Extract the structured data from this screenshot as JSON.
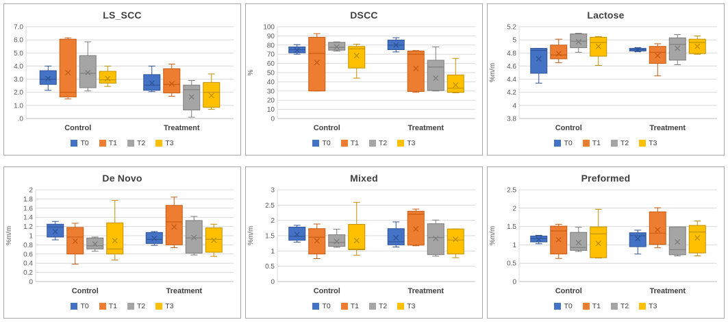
{
  "series": [
    {
      "name": "T0",
      "fill": "#4472C4",
      "border": "#2E5396"
    },
    {
      "name": "T1",
      "fill": "#ED7D31",
      "border": "#C55A11"
    },
    {
      "name": "T2",
      "fill": "#A5A5A5",
      "border": "#7B7B7B"
    },
    {
      "name": "T3",
      "fill": "#FFC000",
      "border": "#BF8F00"
    }
  ],
  "box_value_format": [
    "whisker_low",
    "q1",
    "median",
    "q3",
    "whisker_high",
    "mean"
  ],
  "colors": {
    "gridline": "#D9D9D9",
    "axis_line": "#BFBFBF",
    "panel_border": "#A6A6A6",
    "title_text": "#3F3F3F",
    "tick_text": "#595959"
  },
  "chart_data": [
    {
      "type": "boxplot",
      "title": "LS_SCC",
      "ylabel": "",
      "ylim": [
        0,
        7
      ],
      "ytick_labels": [
        "7.0",
        "6.0",
        "5.0",
        "4.0",
        "3.0",
        "2.0",
        "1.0",
        ".0"
      ],
      "grid": true,
      "legend_position": "bottom",
      "categories": [
        "Control",
        "Treatment"
      ],
      "series": [
        {
          "name": "T0",
          "values": [
            [
              2.15,
              2.6,
              3.0,
              3.65,
              4.0,
              3.05
            ],
            [
              2.05,
              2.15,
              2.55,
              3.35,
              4.0,
              2.7
            ]
          ]
        },
        {
          "name": "T1",
          "values": [
            [
              1.5,
              1.65,
              2.0,
              6.05,
              6.15,
              3.5
            ],
            [
              1.7,
              1.95,
              2.6,
              3.8,
              4.15,
              2.65
            ]
          ]
        },
        {
          "name": "T2",
          "values": [
            [
              2.1,
              2.35,
              3.45,
              4.8,
              5.85,
              3.5
            ],
            [
              0.1,
              0.65,
              2.2,
              2.55,
              2.9,
              1.65
            ]
          ]
        },
        {
          "name": "T3",
          "values": [
            [
              2.45,
              2.7,
              2.95,
              3.6,
              4.0,
              3.05
            ],
            [
              0.7,
              0.85,
              2.0,
              2.75,
              3.4,
              1.75
            ]
          ]
        }
      ]
    },
    {
      "type": "boxplot",
      "title": "DSCC",
      "ylabel": "%",
      "ylim": [
        0,
        100
      ],
      "ytick_labels": [
        "100",
        "90",
        "80",
        "70",
        "60",
        "50",
        "40",
        "30",
        "20",
        "10",
        "0"
      ],
      "grid": true,
      "legend_position": "bottom",
      "categories": [
        "Control",
        "Treatment"
      ],
      "series": [
        {
          "name": "T0",
          "values": [
            [
              70,
              71.5,
              75,
              78,
              80.5,
              74.5
            ],
            [
              72.5,
              75,
              80,
              85.5,
              88,
              80
            ]
          ]
        },
        {
          "name": "T1",
          "values": [
            [
              30,
              30,
              71,
              88.5,
              92.5,
              61
            ],
            [
              28.5,
              29.5,
              70,
              73.5,
              74,
              54.5
            ]
          ]
        },
        {
          "name": "T2",
          "values": [
            [
              73.5,
              74.5,
              77.5,
              83,
              83.5,
              78
            ],
            [
              30,
              30.5,
              56,
              63.5,
              78,
              44
            ]
          ]
        },
        {
          "name": "T3",
          "values": [
            [
              44,
              55,
              76,
              78.5,
              81,
              68.5
            ],
            [
              28,
              28.5,
              33,
              47.5,
              65.5,
              36.5
            ]
          ]
        }
      ]
    },
    {
      "type": "boxplot",
      "title": "Lactose",
      "ylabel": "%m/m",
      "ylim": [
        3.8,
        5.2
      ],
      "ytick_labels": [
        "5.2",
        "5",
        "4.8",
        "4.6",
        "4.4",
        "4.2",
        "4",
        "3.8"
      ],
      "grid": true,
      "legend_position": "bottom",
      "categories": [
        "Control",
        "Treatment"
      ],
      "series": [
        {
          "name": "T0",
          "values": [
            [
              4.34,
              4.49,
              4.84,
              4.87,
              4.87,
              4.71
            ],
            [
              4.82,
              4.83,
              4.85,
              4.87,
              4.88,
              4.85
            ]
          ]
        },
        {
          "name": "T1",
          "values": [
            [
              4.65,
              4.71,
              4.77,
              4.92,
              5.01,
              4.79
            ],
            [
              4.45,
              4.64,
              4.81,
              4.9,
              4.94,
              4.76
            ]
          ]
        },
        {
          "name": "T2",
          "values": [
            [
              4.81,
              4.88,
              4.98,
              5.09,
              5.1,
              4.97
            ],
            [
              4.62,
              4.69,
              4.93,
              5.03,
              5.08,
              4.87
            ]
          ]
        },
        {
          "name": "T3",
          "values": [
            [
              4.61,
              4.75,
              4.96,
              5.04,
              5.05,
              4.9
            ],
            [
              4.78,
              4.79,
              4.96,
              5.01,
              5.06,
              4.9
            ]
          ]
        }
      ]
    },
    {
      "type": "boxplot",
      "title": "De Novo",
      "ylabel": "%m/m",
      "ylim": [
        0,
        2
      ],
      "ytick_labels": [
        "2",
        "1.8",
        "1.6",
        "1.4",
        "1.2",
        "1",
        "0.8",
        "0.6",
        "0.4",
        "0.2",
        "0"
      ],
      "grid": true,
      "legend_position": "bottom",
      "categories": [
        "Control",
        "Treatment"
      ],
      "series": [
        {
          "name": "T0",
          "values": [
            [
              0.91,
              0.97,
              1.19,
              1.25,
              1.31,
              1.09
            ],
            [
              0.79,
              0.83,
              0.92,
              1.07,
              1.09,
              0.94
            ]
          ]
        },
        {
          "name": "T1",
          "values": [
            [
              0.38,
              0.6,
              0.97,
              1.18,
              1.27,
              0.88
            ],
            [
              0.74,
              0.8,
              1.3,
              1.66,
              1.84,
              1.19
            ]
          ]
        },
        {
          "name": "T2",
          "values": [
            [
              0.66,
              0.71,
              0.78,
              0.95,
              0.97,
              0.82
            ],
            [
              0.58,
              0.62,
              0.95,
              1.33,
              1.42,
              0.96
            ]
          ]
        },
        {
          "name": "T3",
          "values": [
            [
              0.47,
              0.6,
              0.71,
              1.28,
              1.77,
              0.89
            ],
            [
              0.55,
              0.64,
              0.92,
              1.17,
              1.25,
              0.9
            ]
          ]
        }
      ]
    },
    {
      "type": "boxplot",
      "title": "Mixed",
      "ylabel": "%m/m",
      "ylim": [
        0,
        3
      ],
      "ytick_labels": [
        "3",
        "2.5",
        "2",
        "1.5",
        "1",
        "0.5",
        "0"
      ],
      "grid": true,
      "legend_position": "bottom",
      "categories": [
        "Control",
        "Treatment"
      ],
      "series": [
        {
          "name": "T0",
          "values": [
            [
              1.29,
              1.35,
              1.48,
              1.78,
              1.84,
              1.54
            ],
            [
              1.13,
              1.2,
              1.3,
              1.73,
              1.95,
              1.43
            ]
          ]
        },
        {
          "name": "T1",
          "values": [
            [
              0.75,
              0.9,
              1.45,
              1.73,
              1.88,
              1.33
            ],
            [
              1.17,
              1.19,
              2.2,
              2.3,
              2.37,
              1.72
            ]
          ]
        },
        {
          "name": "T2",
          "values": [
            [
              1.12,
              1.15,
              1.28,
              1.53,
              1.71,
              1.31
            ],
            [
              0.83,
              0.88,
              1.44,
              1.89,
              2.01,
              1.41
            ]
          ]
        },
        {
          "name": "T3",
          "values": [
            [
              0.86,
              1.04,
              1.06,
              1.87,
              2.59,
              1.34
            ],
            [
              0.78,
              0.9,
              1.36,
              1.72,
              1.72,
              1.38
            ]
          ]
        }
      ]
    },
    {
      "type": "boxplot",
      "title": "Preformed",
      "ylabel": "%m/m",
      "ylim": [
        0,
        2.5
      ],
      "ytick_labels": [
        "2.5",
        "2",
        "1.5",
        "1",
        "0.5",
        "0"
      ],
      "grid": true,
      "legend_position": "bottom",
      "categories": [
        "Control",
        "Treatment"
      ],
      "series": [
        {
          "name": "T0",
          "values": [
            [
              1.03,
              1.08,
              1.17,
              1.24,
              1.26,
              1.15
            ],
            [
              0.75,
              0.95,
              1.25,
              1.33,
              1.4,
              1.17
            ]
          ]
        },
        {
          "name": "T1",
          "values": [
            [
              0.63,
              0.75,
              1.38,
              1.51,
              1.56,
              1.14
            ],
            [
              0.92,
              1.01,
              1.32,
              1.9,
              2.01,
              1.41
            ]
          ]
        },
        {
          "name": "T2",
          "values": [
            [
              0.82,
              0.85,
              0.93,
              1.34,
              1.48,
              1.06
            ],
            [
              0.7,
              0.73,
              0.87,
              1.49,
              1.49,
              1.08
            ]
          ]
        },
        {
          "name": "T3",
          "values": [
            [
              0.64,
              0.65,
              1.3,
              1.49,
              1.97,
              1.04
            ],
            [
              0.7,
              0.78,
              1.35,
              1.53,
              1.65,
              1.19
            ]
          ]
        }
      ]
    }
  ]
}
